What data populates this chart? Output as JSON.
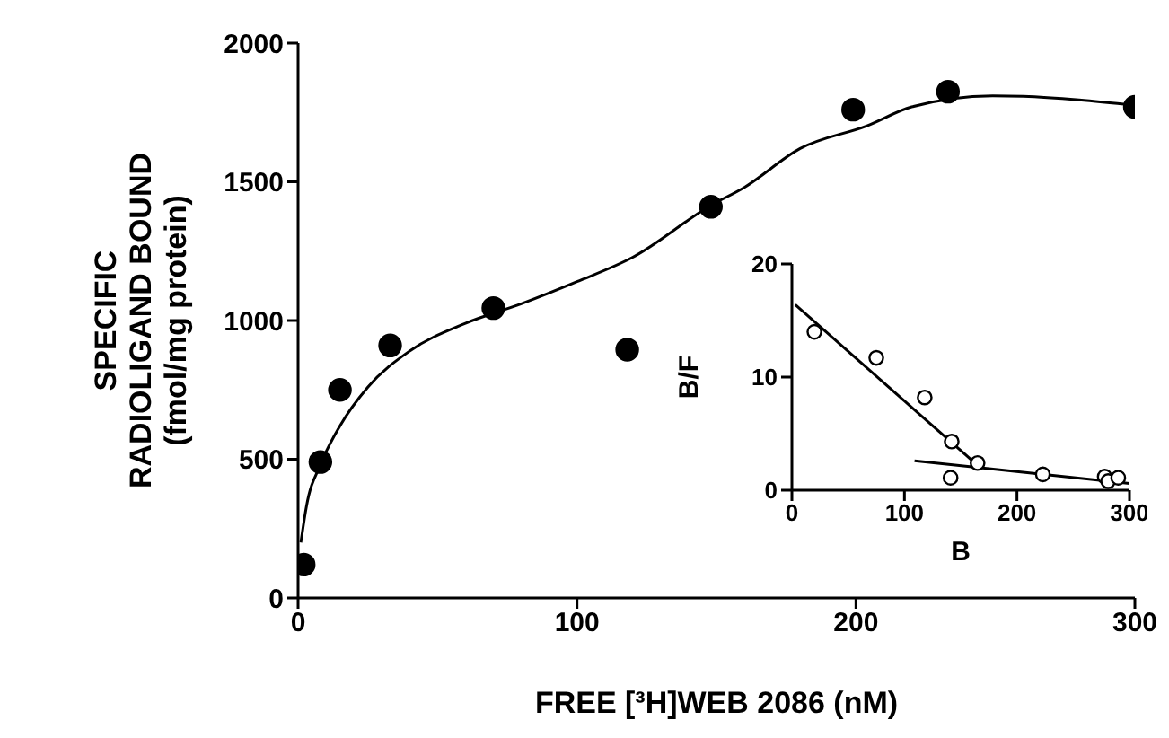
{
  "chart_data": [
    {
      "type": "scatter",
      "xlabel": "FREE [³H]WEB 2086 (nM)",
      "ylabel": "SPECIFIC RADIOLIGAND BOUND (fmol/mg protein)",
      "xlim": [
        0,
        300
      ],
      "xticks": [
        0,
        100,
        200,
        300
      ],
      "ylim": [
        0,
        2000
      ],
      "yticks": [
        0,
        500,
        1000,
        1500,
        2000
      ],
      "series": [
        {
          "marker": "circle",
          "color": "#000000",
          "x": [
            2,
            8,
            15,
            33,
            70,
            118,
            148,
            199,
            233,
            300
          ],
          "values": [
            120,
            490,
            750,
            910,
            1045,
            895,
            1410,
            1760,
            1825,
            1770
          ]
        },
        {
          "type": "line",
          "marker": "none",
          "color": "#000000",
          "x": [
            1,
            3,
            8,
            15,
            25,
            40,
            60,
            80,
            100,
            120,
            148,
            160,
            180,
            204,
            220,
            249,
            260,
            280,
            300
          ],
          "values": [
            200,
            330,
            480,
            620,
            760,
            890,
            990,
            1060,
            1140,
            1228,
            1415,
            1480,
            1620,
            1702,
            1770,
            1810,
            1808,
            1795,
            1775
          ]
        }
      ]
    },
    {
      "type": "scatter",
      "xlabel": "B",
      "ylabel": "B/F",
      "xlim": [
        0,
        300
      ],
      "xticks": [
        0,
        100,
        200,
        300
      ],
      "ylim": [
        0,
        20
      ],
      "yticks": [
        0,
        10,
        20
      ],
      "series": [
        {
          "marker": "circle",
          "color": "#000000",
          "x": [
            20,
            75,
            118,
            142,
            141,
            165,
            223,
            278,
            281,
            290
          ],
          "values": [
            14,
            11.7,
            8.2,
            4.3,
            1.1,
            2.4,
            1.4,
            1.2,
            0.8,
            1.1
          ]
        },
        {
          "type": "line",
          "marker": "none",
          "color": "#000000",
          "x": [
            3,
            165
          ],
          "values": [
            16.4,
            2.2
          ]
        },
        {
          "type": "line",
          "marker": "none",
          "color": "#000000",
          "x": [
            109,
            300
          ],
          "values": [
            2.6,
            0.6
          ]
        }
      ]
    }
  ]
}
